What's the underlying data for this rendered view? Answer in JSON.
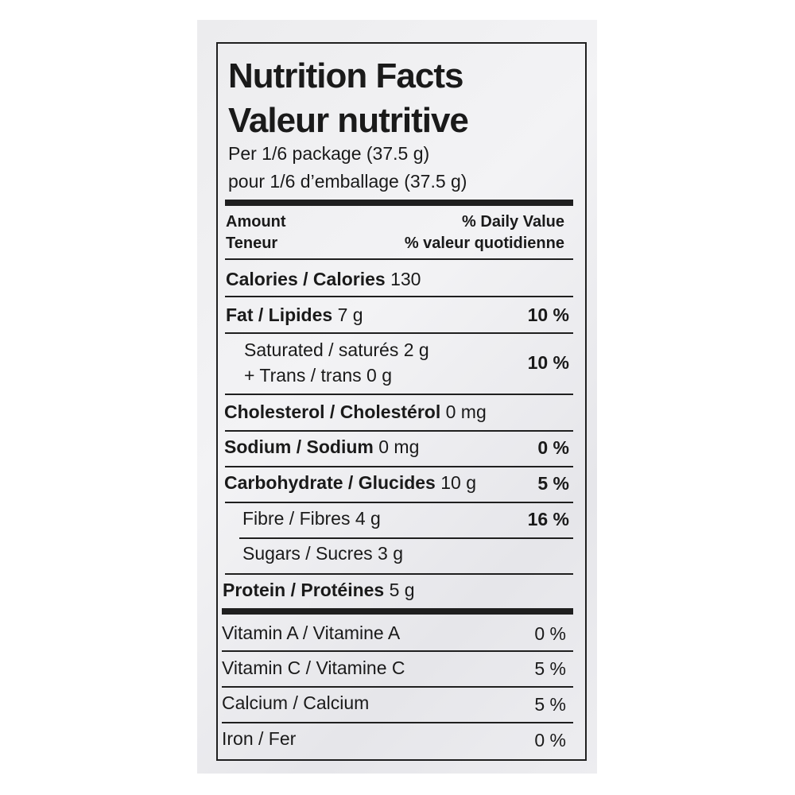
{
  "title_en": "Nutrition Facts",
  "title_fr": "Valeur nutritive",
  "serving_en": "Per 1/6 package (37.5 g)",
  "serving_fr": "pour 1/6 d’emballage (37.5 g)",
  "header": {
    "amount_en": "Amount",
    "amount_fr": "Teneur",
    "dv_en": "% Daily Value",
    "dv_fr": "% valeur quotidienne"
  },
  "rows": [
    {
      "name": "Calories / Calories",
      "amount": "130",
      "dv": ""
    },
    {
      "name": "Fat / Lipides",
      "amount": "7 g",
      "dv": "10 %"
    },
    {
      "name": "Saturated / saturés",
      "amount": "2 g",
      "name2": "+ Trans / trans",
      "amount2": "0 g",
      "dv": "10 %"
    },
    {
      "name": "Cholesterol / Cholestérol",
      "amount": "0 mg",
      "dv": ""
    },
    {
      "name": "Sodium / Sodium",
      "amount": "0 mg",
      "dv": "0 %"
    },
    {
      "name": "Carbohydrate / Glucides",
      "amount": "10 g",
      "dv": "5 %"
    },
    {
      "name": "Fibre / Fibres",
      "amount": "4 g",
      "dv": "16 %"
    },
    {
      "name": "Sugars / Sucres",
      "amount": "3 g",
      "dv": ""
    },
    {
      "name": "Protein / Protéines",
      "amount": "5 g",
      "dv": ""
    }
  ],
  "vitamins": [
    {
      "name": "Vitamin A / Vitamine A",
      "dv": "0 %"
    },
    {
      "name": "Vitamin C / Vitamine C",
      "dv": "5 %"
    },
    {
      "name": "Calcium / Calcium",
      "dv": "5 %"
    },
    {
      "name": "Iron / Fer",
      "dv": "0 %"
    }
  ]
}
